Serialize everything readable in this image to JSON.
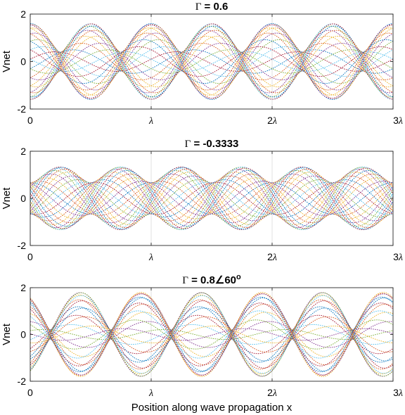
{
  "chart_data": [
    {
      "type": "line",
      "title_prefix": "Γ",
      "title": " = 0.6",
      "title_sup": "",
      "reflection": {
        "magnitude": 0.6,
        "angle_deg": 0
      },
      "ylabel": "Vnet",
      "xlabel": "",
      "xlim": [
        0,
        3
      ],
      "ylim": [
        -2,
        2
      ],
      "yticks": [
        "-2",
        "0",
        "2"
      ],
      "xticks": [
        "0",
        "λ",
        "2λ",
        "3λ"
      ],
      "snapshots": 25,
      "grid": "vertical lines at λ and 2λ"
    },
    {
      "type": "line",
      "title_prefix": "Γ",
      "title": " = -0.3333",
      "title_sup": "",
      "reflection": {
        "magnitude": -0.3333,
        "angle_deg": 0
      },
      "ylabel": "Vnet",
      "xlabel": "",
      "xlim": [
        0,
        3
      ],
      "ylim": [
        -2,
        2
      ],
      "yticks": [
        "-2",
        "0",
        "2"
      ],
      "xticks": [
        "0",
        "λ",
        "2λ",
        "3λ"
      ],
      "snapshots": 25,
      "grid": "vertical lines at λ and 2λ"
    },
    {
      "type": "line",
      "title_prefix": "Γ",
      "title": " = 0.8∠60",
      "title_sup": "o",
      "reflection": {
        "magnitude": 0.8,
        "angle_deg": 60
      },
      "ylabel": "Vnet",
      "xlabel": "Position along wave propagation x",
      "xlim": [
        0,
        3
      ],
      "ylim": [
        -2,
        2
      ],
      "yticks": [
        "-2",
        "0",
        "2"
      ],
      "xticks": [
        "0",
        "λ",
        "2λ",
        "3λ"
      ],
      "snapshots": 25,
      "grid": "vertical lines at λ and 2λ"
    }
  ],
  "colors": [
    "#0072bd",
    "#d95319",
    "#edb120",
    "#7e2f8e",
    "#77ac30",
    "#4dbeee",
    "#a2142f"
  ]
}
